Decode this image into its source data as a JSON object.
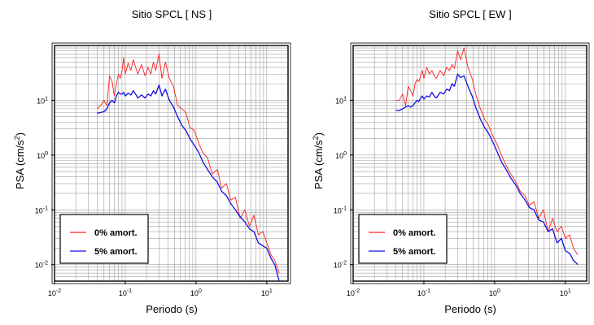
{
  "chart_data": [
    {
      "type": "line",
      "title": "Sitio SPCL [ NS ]",
      "xlabel": "Periodo (s)",
      "ylabel": "PSA (cm/s²)",
      "xscale": "log",
      "yscale": "log",
      "xlim": [
        0.01,
        20
      ],
      "ylim": [
        0.005,
        100
      ],
      "grid": true,
      "legend_position": "bottom-left",
      "x_ticks": [
        {
          "value": 0.01,
          "base": "10",
          "exp": "-2"
        },
        {
          "value": 0.1,
          "base": "10",
          "exp": "-1"
        },
        {
          "value": 1,
          "base": "10",
          "exp": "0"
        },
        {
          "value": 10,
          "base": "10",
          "exp": "1"
        }
      ],
      "y_ticks": [
        {
          "value": 0.01,
          "base": "10",
          "exp": "-2"
        },
        {
          "value": 0.1,
          "base": "10",
          "exp": "-1"
        },
        {
          "value": 1,
          "base": "10",
          "exp": "0"
        },
        {
          "value": 10,
          "base": "10",
          "exp": "1"
        }
      ],
      "series": [
        {
          "name": "0% amort.",
          "color": "#ff2020",
          "x": [
            0.04,
            0.045,
            0.05,
            0.055,
            0.06,
            0.065,
            0.07,
            0.075,
            0.08,
            0.085,
            0.09,
            0.095,
            0.1,
            0.11,
            0.12,
            0.13,
            0.14,
            0.15,
            0.17,
            0.19,
            0.21,
            0.23,
            0.25,
            0.27,
            0.3,
            0.33,
            0.37,
            0.42,
            0.48,
            0.55,
            0.63,
            0.72,
            0.82,
            0.95,
            1.1,
            1.25,
            1.45,
            1.7,
            2.0,
            2.3,
            2.7,
            3.1,
            3.6,
            4.2,
            4.9,
            5.7,
            6.6,
            7.6,
            8.8,
            10,
            11.5,
            13,
            15
          ],
          "y": [
            7,
            8,
            10,
            8,
            28,
            22,
            12,
            20,
            30,
            25,
            35,
            60,
            30,
            48,
            35,
            55,
            40,
            30,
            45,
            28,
            40,
            30,
            50,
            35,
            70,
            25,
            50,
            25,
            18,
            8,
            7,
            6,
            3.2,
            2.8,
            1.6,
            1.1,
            0.9,
            0.45,
            0.55,
            0.25,
            0.3,
            0.15,
            0.17,
            0.07,
            0.1,
            0.05,
            0.08,
            0.035,
            0.04,
            0.025,
            0.015,
            0.012,
            0.007
          ]
        },
        {
          "name": "5% amort.",
          "color": "#1010e0",
          "x": [
            0.04,
            0.045,
            0.05,
            0.055,
            0.06,
            0.065,
            0.07,
            0.075,
            0.08,
            0.085,
            0.09,
            0.095,
            0.1,
            0.11,
            0.12,
            0.13,
            0.14,
            0.15,
            0.17,
            0.19,
            0.21,
            0.23,
            0.25,
            0.27,
            0.3,
            0.33,
            0.37,
            0.42,
            0.48,
            0.55,
            0.63,
            0.72,
            0.82,
            0.95,
            1.1,
            1.25,
            1.45,
            1.7,
            2.0,
            2.3,
            2.7,
            3.1,
            3.6,
            4.2,
            4.9,
            5.7,
            6.6,
            7.6,
            8.8,
            10,
            11.5,
            13,
            15
          ],
          "y": [
            5.8,
            6,
            6.2,
            7,
            9,
            10,
            9,
            12,
            14,
            13,
            13,
            14,
            12,
            13.5,
            12.5,
            15,
            13,
            11,
            12.5,
            11,
            13,
            12,
            15,
            13,
            19,
            12,
            16,
            10,
            7.5,
            5,
            3.5,
            2.8,
            2,
            1.5,
            1.1,
            0.75,
            0.55,
            0.4,
            0.32,
            0.22,
            0.18,
            0.13,
            0.1,
            0.075,
            0.06,
            0.045,
            0.04,
            0.025,
            0.022,
            0.02,
            0.013,
            0.01,
            0.005
          ]
        }
      ]
    },
    {
      "type": "line",
      "title": "Sitio SPCL [ EW ]",
      "xlabel": "Periodo (s)",
      "ylabel": "PSA (cm/s²)",
      "xscale": "log",
      "yscale": "log",
      "xlim": [
        0.01,
        20
      ],
      "ylim": [
        0.005,
        100
      ],
      "grid": true,
      "legend_position": "bottom-left",
      "x_ticks": [
        {
          "value": 0.01,
          "base": "10",
          "exp": "-2"
        },
        {
          "value": 0.1,
          "base": "10",
          "exp": "-1"
        },
        {
          "value": 1,
          "base": "10",
          "exp": "0"
        },
        {
          "value": 10,
          "base": "10",
          "exp": "1"
        }
      ],
      "y_ticks": [
        {
          "value": 0.01,
          "base": "10",
          "exp": "-2"
        },
        {
          "value": 0.1,
          "base": "10",
          "exp": "-1"
        },
        {
          "value": 1,
          "base": "10",
          "exp": "0"
        },
        {
          "value": 10,
          "base": "10",
          "exp": "1"
        }
      ],
      "series": [
        {
          "name": "0% amort.",
          "color": "#ff2020",
          "x": [
            0.04,
            0.045,
            0.05,
            0.055,
            0.06,
            0.065,
            0.07,
            0.075,
            0.08,
            0.085,
            0.09,
            0.095,
            0.1,
            0.11,
            0.12,
            0.13,
            0.14,
            0.15,
            0.17,
            0.19,
            0.21,
            0.23,
            0.25,
            0.27,
            0.3,
            0.33,
            0.37,
            0.42,
            0.48,
            0.55,
            0.63,
            0.72,
            0.82,
            0.95,
            1.1,
            1.25,
            1.45,
            1.7,
            2.0,
            2.3,
            2.7,
            3.1,
            3.6,
            4.2,
            4.9,
            5.7,
            6.6,
            7.6,
            8.8,
            10,
            11.5,
            13,
            15
          ],
          "y": [
            10,
            10,
            13,
            8,
            18,
            15,
            12,
            20,
            24,
            22,
            28,
            35,
            25,
            40,
            30,
            35,
            28,
            25,
            35,
            28,
            40,
            35,
            45,
            38,
            80,
            55,
            90,
            40,
            25,
            12,
            7,
            4.5,
            3.5,
            2.2,
            1.5,
            1.0,
            0.65,
            0.45,
            0.32,
            0.22,
            0.18,
            0.12,
            0.14,
            0.07,
            0.1,
            0.04,
            0.07,
            0.04,
            0.05,
            0.03,
            0.035,
            0.02,
            0.015
          ]
        },
        {
          "name": "5% amort.",
          "color": "#1010e0",
          "x": [
            0.04,
            0.045,
            0.05,
            0.055,
            0.06,
            0.065,
            0.07,
            0.075,
            0.08,
            0.085,
            0.09,
            0.095,
            0.1,
            0.11,
            0.12,
            0.13,
            0.14,
            0.15,
            0.17,
            0.19,
            0.21,
            0.23,
            0.25,
            0.27,
            0.3,
            0.33,
            0.37,
            0.42,
            0.48,
            0.55,
            0.63,
            0.72,
            0.82,
            0.95,
            1.1,
            1.25,
            1.45,
            1.7,
            2.0,
            2.3,
            2.7,
            3.1,
            3.6,
            4.2,
            4.9,
            5.7,
            6.6,
            7.6,
            8.8,
            10,
            11.5,
            13,
            15
          ],
          "y": [
            6.5,
            6.5,
            7,
            7.5,
            8,
            7.5,
            8,
            9,
            10,
            9.5,
            11,
            12,
            10.5,
            12,
            11.5,
            14,
            12,
            11,
            14,
            13,
            16,
            15,
            20,
            18,
            30,
            26,
            28,
            18,
            12,
            7,
            4.5,
            3.2,
            2.5,
            1.7,
            1.1,
            0.75,
            0.55,
            0.38,
            0.28,
            0.2,
            0.15,
            0.11,
            0.1,
            0.065,
            0.06,
            0.04,
            0.045,
            0.025,
            0.03,
            0.018,
            0.016,
            0.012,
            0.01
          ]
        }
      ]
    }
  ]
}
